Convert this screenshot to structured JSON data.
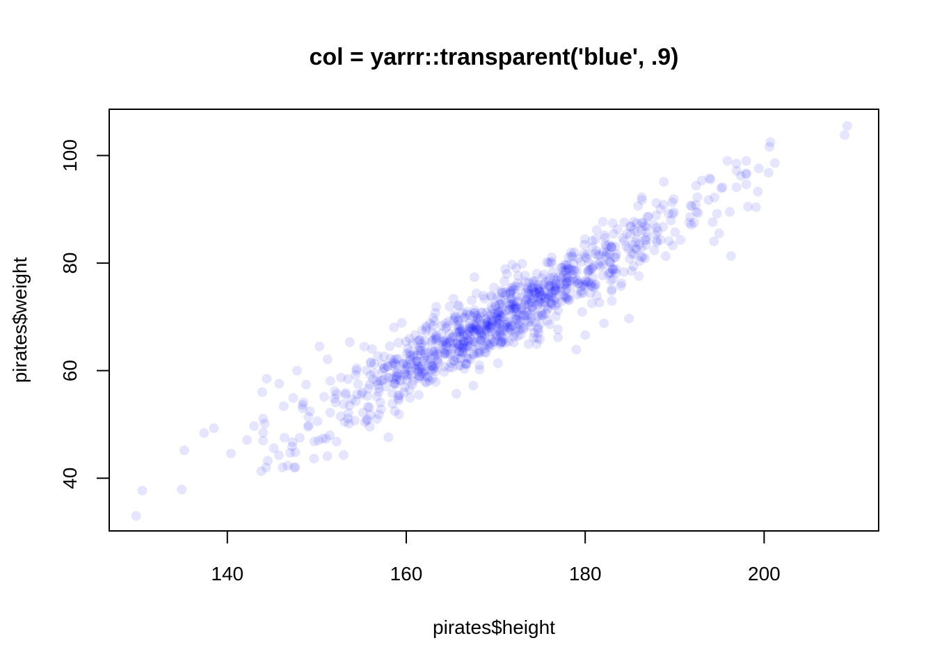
{
  "chart_data": {
    "type": "scatter",
    "title": "col = yarrr::transparent('blue', .9)",
    "xlabel": "pirates$height",
    "ylabel": "pirates$weight",
    "xlim": [
      126.8,
      212.8
    ],
    "ylim": [
      30.2,
      108.6
    ],
    "x_ticks": [
      140,
      160,
      180,
      200
    ],
    "y_ticks": [
      40,
      60,
      80,
      100
    ],
    "x_tick_labels": [
      "140",
      "160",
      "180",
      "200"
    ],
    "y_tick_labels": [
      "40",
      "60",
      "80",
      "100"
    ],
    "grid": false,
    "point_color": "#0000ff",
    "point_opacity": 0.1,
    "point_count": 1000,
    "points": [
      {
        "x": 129.8,
        "y": 33.0
      },
      {
        "x": 130.5,
        "y": 37.7
      },
      {
        "x": 134.9,
        "y": 37.9
      },
      {
        "x": 135.2,
        "y": 45.2
      },
      {
        "x": 137.4,
        "y": 48.4
      },
      {
        "x": 138.5,
        "y": 49.3
      },
      {
        "x": 140.4,
        "y": 44.6
      },
      {
        "x": 142.2,
        "y": 47.1
      },
      {
        "x": 143.0,
        "y": 49.7
      },
      {
        "x": 143.8,
        "y": 41.3
      },
      {
        "x": 143.9,
        "y": 56.0
      },
      {
        "x": 144.4,
        "y": 58.5
      },
      {
        "x": 145.2,
        "y": 45.6
      },
      {
        "x": 145.8,
        "y": 57.6
      },
      {
        "x": 146.3,
        "y": 53.4
      },
      {
        "x": 147.3,
        "y": 46.7
      },
      {
        "x": 147.6,
        "y": 44.8
      },
      {
        "x": 147.8,
        "y": 60.0
      },
      {
        "x": 148.4,
        "y": 53.6
      },
      {
        "x": 148.8,
        "y": 57.4
      },
      {
        "x": 149.1,
        "y": 49.8
      },
      {
        "x": 150.2,
        "y": 47.0
      },
      {
        "x": 150.3,
        "y": 64.5
      },
      {
        "x": 151.2,
        "y": 62.1
      },
      {
        "x": 152.2,
        "y": 46.8
      },
      {
        "x": 153.0,
        "y": 44.3
      },
      {
        "x": 153.5,
        "y": 51.1
      },
      {
        "x": 153.7,
        "y": 65.3
      },
      {
        "x": 158.0,
        "y": 47.6
      },
      {
        "x": 165.6,
        "y": 55.7
      },
      {
        "x": 167.5,
        "y": 57.2
      },
      {
        "x": 168.2,
        "y": 60.2
      },
      {
        "x": 179.0,
        "y": 63.9
      },
      {
        "x": 180.0,
        "y": 66.6
      },
      {
        "x": 182.1,
        "y": 68.8
      },
      {
        "x": 184.9,
        "y": 69.7
      },
      {
        "x": 183.6,
        "y": 86.3
      },
      {
        "x": 188.8,
        "y": 95.1
      },
      {
        "x": 189.0,
        "y": 81.3
      },
      {
        "x": 189.9,
        "y": 91.9
      },
      {
        "x": 192.4,
        "y": 94.4
      },
      {
        "x": 195.2,
        "y": 93.9
      },
      {
        "x": 196.3,
        "y": 81.3
      },
      {
        "x": 196.9,
        "y": 98.5
      },
      {
        "x": 197.4,
        "y": 96.2
      },
      {
        "x": 198.2,
        "y": 90.5
      },
      {
        "x": 199.1,
        "y": 90.4
      },
      {
        "x": 199.4,
        "y": 97.6
      },
      {
        "x": 199.3,
        "y": 93.3
      },
      {
        "x": 200.5,
        "y": 96.8
      },
      {
        "x": 200.6,
        "y": 101.6
      },
      {
        "x": 200.7,
        "y": 102.5
      },
      {
        "x": 201.2,
        "y": 98.6
      },
      {
        "x": 209.0,
        "y": 103.8
      },
      {
        "x": 209.3,
        "y": 105.5
      }
    ]
  }
}
